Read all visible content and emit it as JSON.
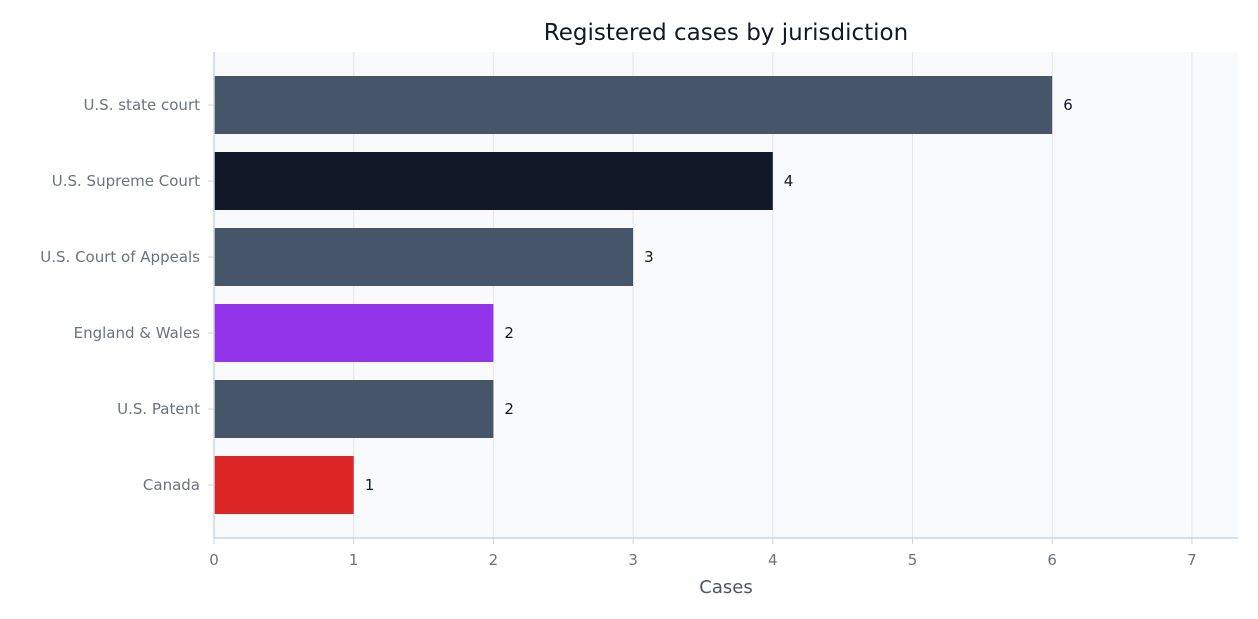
{
  "chart_data": {
    "type": "bar",
    "orientation": "horizontal",
    "title": "Registered cases by jurisdiction",
    "xlabel": "Cases",
    "ylabel": "",
    "xlim": [
      0,
      7.3
    ],
    "xticks": [
      "0",
      "1",
      "2",
      "3",
      "4",
      "5",
      "6",
      "7"
    ],
    "grid": true,
    "categories": [
      "U.S. state court",
      "U.S. Supreme Court",
      "U.S. Court of Appeals",
      "England & Wales",
      "U.S. Patent",
      "Canada"
    ],
    "values": [
      6,
      4,
      3,
      2,
      2,
      1
    ],
    "colors": [
      "#475569",
      "#111827",
      "#475569",
      "#9333ea",
      "#475569",
      "#dc2626"
    ],
    "value_labels": [
      "6",
      "4",
      "3",
      "2",
      "2",
      "1"
    ]
  },
  "colors": {
    "plot_background": "#f8fafc",
    "grid": "#e5e7eb",
    "axis": "#cbd5e1",
    "text_primary": "#111827",
    "text_secondary": "#6b7280"
  }
}
